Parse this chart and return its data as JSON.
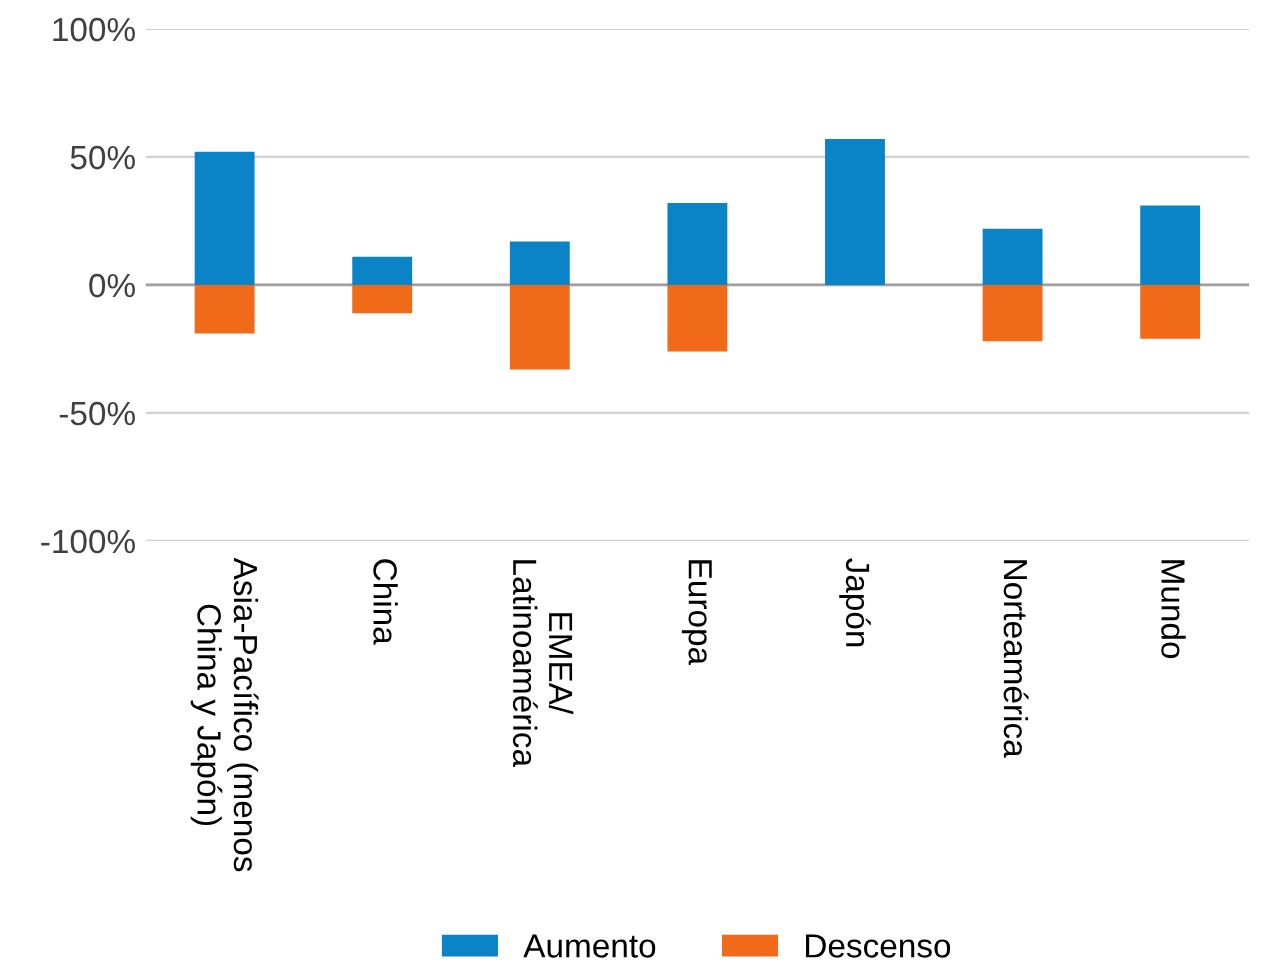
{
  "chart_data": {
    "type": "bar",
    "stacked": true,
    "categories": [
      "Asia-Pacífico (menos\nChina y Japón)",
      "China",
      "EMEA/\nLatinoamérica",
      "Europa",
      "Japón",
      "Norteamérica",
      "Mundo"
    ],
    "series": [
      {
        "name": "Aumento",
        "color": "#0a84c6",
        "values": [
          52,
          11,
          17,
          32,
          57,
          22,
          31
        ]
      },
      {
        "name": "Descenso",
        "color": "#f06a1a",
        "values": [
          -19,
          -11,
          -33,
          -26,
          null,
          -22,
          -21
        ]
      }
    ],
    "ylim": [
      -100,
      100
    ],
    "yticks": [
      {
        "value": -100,
        "label": "-100%"
      },
      {
        "value": -50,
        "label": "-50%"
      },
      {
        "value": 0,
        "label": "0%"
      },
      {
        "value": 50,
        "label": "50%"
      },
      {
        "value": 100,
        "label": "100%"
      }
    ],
    "grid": "y",
    "legend": "bottom"
  }
}
